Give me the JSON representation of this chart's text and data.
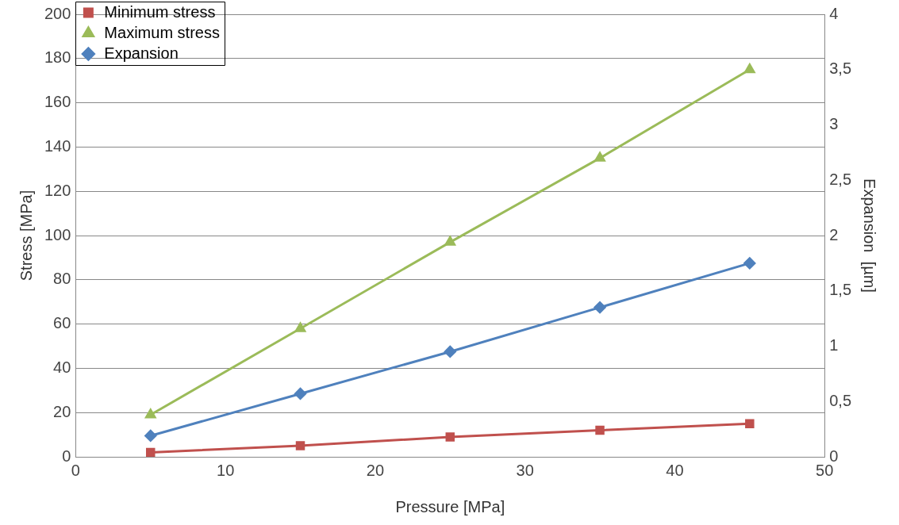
{
  "chart_data": {
    "type": "line",
    "xlabel": "Pressure [MPa]",
    "ylabel": "Stress [MPa]",
    "y2label": "Expansion  [µm]",
    "x": [
      5,
      15,
      25,
      35,
      45
    ],
    "series": [
      {
        "name": "Minimum stress",
        "color": "#c0504d",
        "marker": "square",
        "values": [
          2,
          5,
          9,
          12,
          15
        ]
      },
      {
        "name": "Maximum stress",
        "color": "#9bbb59",
        "marker": "triangle",
        "values": [
          19,
          58,
          97,
          135,
          175
        ]
      },
      {
        "name": "Expansion",
        "color": "#4f81bd",
        "marker": "diamond",
        "axis": "y2",
        "values": [
          0.19,
          0.57,
          0.95,
          1.35,
          1.75
        ]
      }
    ],
    "xlim": [
      0,
      50
    ],
    "xticks": [
      0,
      10,
      20,
      30,
      40,
      50
    ],
    "ylim": [
      0,
      200
    ],
    "yticks": [
      0,
      20,
      40,
      60,
      80,
      100,
      120,
      140,
      160,
      180,
      200
    ],
    "y2lim": [
      0,
      4
    ],
    "y2ticks": [
      0,
      {
        "value": 0.5,
        "label": "0,5"
      },
      1,
      {
        "value": 1.5,
        "label": "1,5"
      },
      2,
      {
        "value": 2.5,
        "label": "2,5"
      },
      3,
      {
        "value": 3.5,
        "label": "3,5"
      },
      4
    ],
    "grid": "y",
    "legend": "top left",
    "line_style": "solid"
  }
}
